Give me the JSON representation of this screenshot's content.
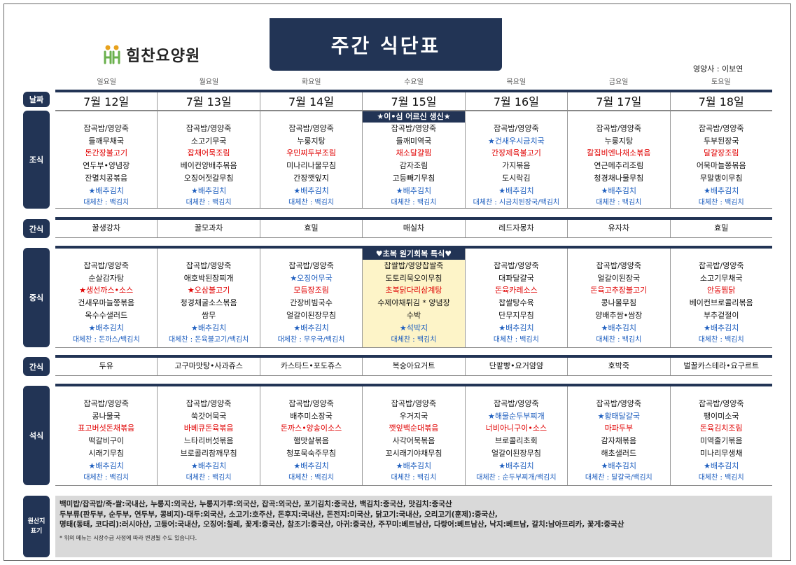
{
  "logo_text": "힘찬요양원",
  "title": "주간 식단표",
  "nutritionist": "영양사 : 이보연",
  "days": [
    "일요일",
    "월요일",
    "화요일",
    "수요일",
    "목요일",
    "금요일",
    "토요일"
  ],
  "sections": {
    "date": "날짜",
    "breakfast": "조식",
    "snack": "간식",
    "lunch": "중식",
    "dinner": "석식",
    "origin": [
      "원산지",
      "표기"
    ]
  },
  "dates": [
    "7월 12일",
    "7월 13일",
    "7월 14일",
    "7월 15일",
    "7월 16일",
    "7월 17일",
    "7월 18일"
  ],
  "breakfast_special": "★이•심 어르신 생신★",
  "lunch_special": "♥초복 원기회복 특식♥",
  "breakfast": [
    {
      "items": [
        {
          "t": "잡곡밥/영양죽"
        },
        {
          "t": "들깨무채국"
        },
        {
          "t": "돈간장불고기",
          "c": "red"
        },
        {
          "t": "연두부•양념장"
        },
        {
          "t": "잔멸치콩볶음"
        },
        {
          "t": "★배추김치",
          "c": "star"
        }
      ],
      "sub": "대체찬 : 백김치"
    },
    {
      "items": [
        {
          "t": "잡곡밥/영양죽"
        },
        {
          "t": "소고기무국"
        },
        {
          "t": "잡채어묵조림",
          "c": "red"
        },
        {
          "t": "베이컨양배추볶음"
        },
        {
          "t": "오징어젓갈무침"
        },
        {
          "t": "★배추김치",
          "c": "star"
        }
      ],
      "sub": "대체찬 : 백김치"
    },
    {
      "items": [
        {
          "t": "잡곡밥/영양죽"
        },
        {
          "t": "누룽지탕"
        },
        {
          "t": "우민찌두부조림",
          "c": "red"
        },
        {
          "t": "미나리나물무침"
        },
        {
          "t": "간장깻잎지"
        },
        {
          "t": "★배추김치",
          "c": "star"
        }
      ],
      "sub": "대체찬 : 백김치"
    },
    {
      "items": [
        {
          "t": "잡곡밥/영양죽"
        },
        {
          "t": "들깨미역국"
        },
        {
          "t": "채소달걀찜",
          "c": "red"
        },
        {
          "t": "감자조림"
        },
        {
          "t": "고등빼기무침"
        },
        {
          "t": "★배추김치",
          "c": "star"
        }
      ],
      "sub": "대체찬 : 백김치"
    },
    {
      "items": [
        {
          "t": "잡곡밥/영양죽"
        },
        {
          "t": "★건새우시금치국",
          "c": "star"
        },
        {
          "t": "간장제육불고기",
          "c": "red"
        },
        {
          "t": "가지볶음"
        },
        {
          "t": "도시락김"
        },
        {
          "t": "★배추김치",
          "c": "star"
        }
      ],
      "sub": "대체찬 : 시금치된장국/백김치"
    },
    {
      "items": [
        {
          "t": "잡곡밥/영양죽"
        },
        {
          "t": "누룽지탕"
        },
        {
          "t": "칼집비엔나채소볶음",
          "c": "red"
        },
        {
          "t": "연근메추리조림"
        },
        {
          "t": "청경채나물무침"
        },
        {
          "t": "★배추김치",
          "c": "star"
        }
      ],
      "sub": "대체찬 : 백김치"
    },
    {
      "items": [
        {
          "t": "잡곡밥/영양죽"
        },
        {
          "t": "두부된장국"
        },
        {
          "t": "달걀장조림",
          "c": "red"
        },
        {
          "t": "어묵마늘쫑볶음"
        },
        {
          "t": "무말랭이무침"
        },
        {
          "t": "★배추김치",
          "c": "star"
        }
      ],
      "sub": "대체찬 : 백김치"
    }
  ],
  "snack1": [
    "꿀생강차",
    "꿀모과차",
    "효밀",
    "매실차",
    "레드자몽차",
    "유자차",
    "효밀"
  ],
  "lunch": [
    {
      "items": [
        {
          "t": "잡곡밥/영양죽"
        },
        {
          "t": "순살감자탕"
        },
        {
          "t": "★생선까스•소스",
          "c": "red"
        },
        {
          "t": "건새우마늘쫑볶음"
        },
        {
          "t": "옥수수샐러드"
        },
        {
          "t": "★배추김치",
          "c": "star"
        }
      ],
      "sub": "대체찬 : 돈까스/백김치"
    },
    {
      "items": [
        {
          "t": "잡곡밥/영양죽"
        },
        {
          "t": "애호박된장찌개"
        },
        {
          "t": "★오삼불고기",
          "c": "red"
        },
        {
          "t": "청경채굴소스볶음"
        },
        {
          "t": "쌈무"
        },
        {
          "t": "★배추김치",
          "c": "star"
        }
      ],
      "sub": "대체찬 : 돈육불고기/백김치"
    },
    {
      "items": [
        {
          "t": "잡곡밥/영양죽"
        },
        {
          "t": "★오징어무국",
          "c": "star"
        },
        {
          "t": "모듬장조림",
          "c": "red"
        },
        {
          "t": "간장비빔국수"
        },
        {
          "t": "얼갈이된장무침"
        },
        {
          "t": "★배추김치",
          "c": "star"
        }
      ],
      "sub": "대체찬 : 무우국/백김치"
    },
    {
      "items": [
        {
          "t": "찹쌀밥/영양찹쌀죽"
        },
        {
          "t": "도토리묵오이무침"
        },
        {
          "t": "초복닭다리삼계탕",
          "c": "red"
        },
        {
          "t": "수제야채튀김 * 양념장"
        },
        {
          "t": "수박"
        },
        {
          "t": "★석박지",
          "c": "star"
        }
      ],
      "sub": "대체찬 : 백김치"
    },
    {
      "items": [
        {
          "t": "잡곡밥/영양죽"
        },
        {
          "t": "대파달걀국"
        },
        {
          "t": "돈육카레소스",
          "c": "red"
        },
        {
          "t": "찹쌀탕수육"
        },
        {
          "t": "단무지무침"
        },
        {
          "t": "★배추김치",
          "c": "star"
        }
      ],
      "sub": "대체찬 : 백김치"
    },
    {
      "items": [
        {
          "t": "잡곡밥/영양죽"
        },
        {
          "t": "얼갈이된장국"
        },
        {
          "t": "돈육고추장불고기",
          "c": "red"
        },
        {
          "t": "콩나물무침"
        },
        {
          "t": "양배추쌈•쌈장"
        },
        {
          "t": "★배추김치",
          "c": "star"
        }
      ],
      "sub": "대체찬 : 백김치"
    },
    {
      "items": [
        {
          "t": "잡곡밥/영양죽"
        },
        {
          "t": "소고기무채국"
        },
        {
          "t": "안동찜닭",
          "c": "red"
        },
        {
          "t": "베이컨브로콜리볶음"
        },
        {
          "t": "부추겉절이"
        },
        {
          "t": "★배추김치",
          "c": "star"
        }
      ],
      "sub": "대체찬 : 백김치"
    }
  ],
  "snack2": [
    "두유",
    "고구마맛탕•사과쥬스",
    "카스타드•포도쥬스",
    "복숭아요거트",
    "단팥빵•요거얌얌",
    "호박죽",
    "벌꿀카스테라•요구르트"
  ],
  "dinner": [
    {
      "items": [
        {
          "t": "잡곡밥/영양죽"
        },
        {
          "t": "콩나물국"
        },
        {
          "t": "표고버섯돈채볶음",
          "c": "red"
        },
        {
          "t": "떡갈비구이"
        },
        {
          "t": "시래기무침"
        },
        {
          "t": "★배추김치",
          "c": "star"
        }
      ],
      "sub": "대체찬 : 백김치"
    },
    {
      "items": [
        {
          "t": "잡곡밥/영양죽"
        },
        {
          "t": "쑥갓어묵국"
        },
        {
          "t": "바베큐돈육볶음",
          "c": "red"
        },
        {
          "t": "느타리버섯볶음"
        },
        {
          "t": "브로콜리참깨무침"
        },
        {
          "t": "★배추김치",
          "c": "star"
        }
      ],
      "sub": "대체찬 : 백김치"
    },
    {
      "items": [
        {
          "t": "잡곡밥/영양죽"
        },
        {
          "t": "배추미소장국"
        },
        {
          "t": "돈까스•양송이소스",
          "c": "red"
        },
        {
          "t": "햄맛살볶음"
        },
        {
          "t": "청포묵숙주무침"
        },
        {
          "t": "★배추김치",
          "c": "star"
        }
      ],
      "sub": "대체찬 : 백김치"
    },
    {
      "items": [
        {
          "t": "잡곡밥/영양죽"
        },
        {
          "t": "우거지국"
        },
        {
          "t": "깻잎백순대볶음",
          "c": "red"
        },
        {
          "t": "사각어묵볶음"
        },
        {
          "t": "꼬시래기야채무침"
        },
        {
          "t": "★배추김치",
          "c": "star"
        }
      ],
      "sub": "대체찬 : 백김치"
    },
    {
      "items": [
        {
          "t": "잡곡밥/영양죽"
        },
        {
          "t": "★해물순두부찌개",
          "c": "star"
        },
        {
          "t": "너비아니구이•소스",
          "c": "red"
        },
        {
          "t": "브로콜리초회"
        },
        {
          "t": "얼갈이된장무침"
        },
        {
          "t": "★배추김치",
          "c": "star"
        }
      ],
      "sub": "대체찬 : 순두부찌개/백김치"
    },
    {
      "items": [
        {
          "t": "잡곡밥/영양죽"
        },
        {
          "t": "★황태달걀국",
          "c": "star"
        },
        {
          "t": "마파두부",
          "c": "red"
        },
        {
          "t": "감자채볶음"
        },
        {
          "t": "해초샐러드"
        },
        {
          "t": "★배추김치",
          "c": "star"
        }
      ],
      "sub": "대체찬 : 달걀국/백김치"
    },
    {
      "items": [
        {
          "t": "잡곡밥/영양죽"
        },
        {
          "t": "팽이미소국"
        },
        {
          "t": "돈육김치조림",
          "c": "red"
        },
        {
          "t": "미역줄기볶음"
        },
        {
          "t": "미나리무생채"
        },
        {
          "t": "★배추김치",
          "c": "star"
        }
      ],
      "sub": "대체찬 : 백김치"
    }
  ],
  "origin_lines": [
    "백미밥/잡곡밥/죽-쌀:국내산, 누룽지:외국산, 누룽지가루:외국산, 잡곡:외국산, 포기김치:중국산, 백김치:중국산, 맛김치:중국산",
    "두부류(판두부, 순두부, 연두부, 콩비지)-대두:외국산, 소고기:호주산, 돈후지:국내산, 돈전지:미국산, 닭고기:국내산, 오리고기(훈제):중국산,",
    "명태(동태, 코다리):러시아산, 고등어:국내산, 오징어:칠레, 꽃게:중국산, 참조기:중국산, 아귀:중국산, 주꾸미:베트남산, 다랑어:베트남산, 낙지:베트남, 갈치:남아프리카, 꽃게:중국산"
  ],
  "origin_note": "* 위의 메뉴는 시장수급 사정에 따라 변경될 수도 있습니다.",
  "colors": {
    "navy": "#223455",
    "red": "#e00000",
    "blue": "#1f5fbf",
    "highlight": "#fdf4c8"
  }
}
